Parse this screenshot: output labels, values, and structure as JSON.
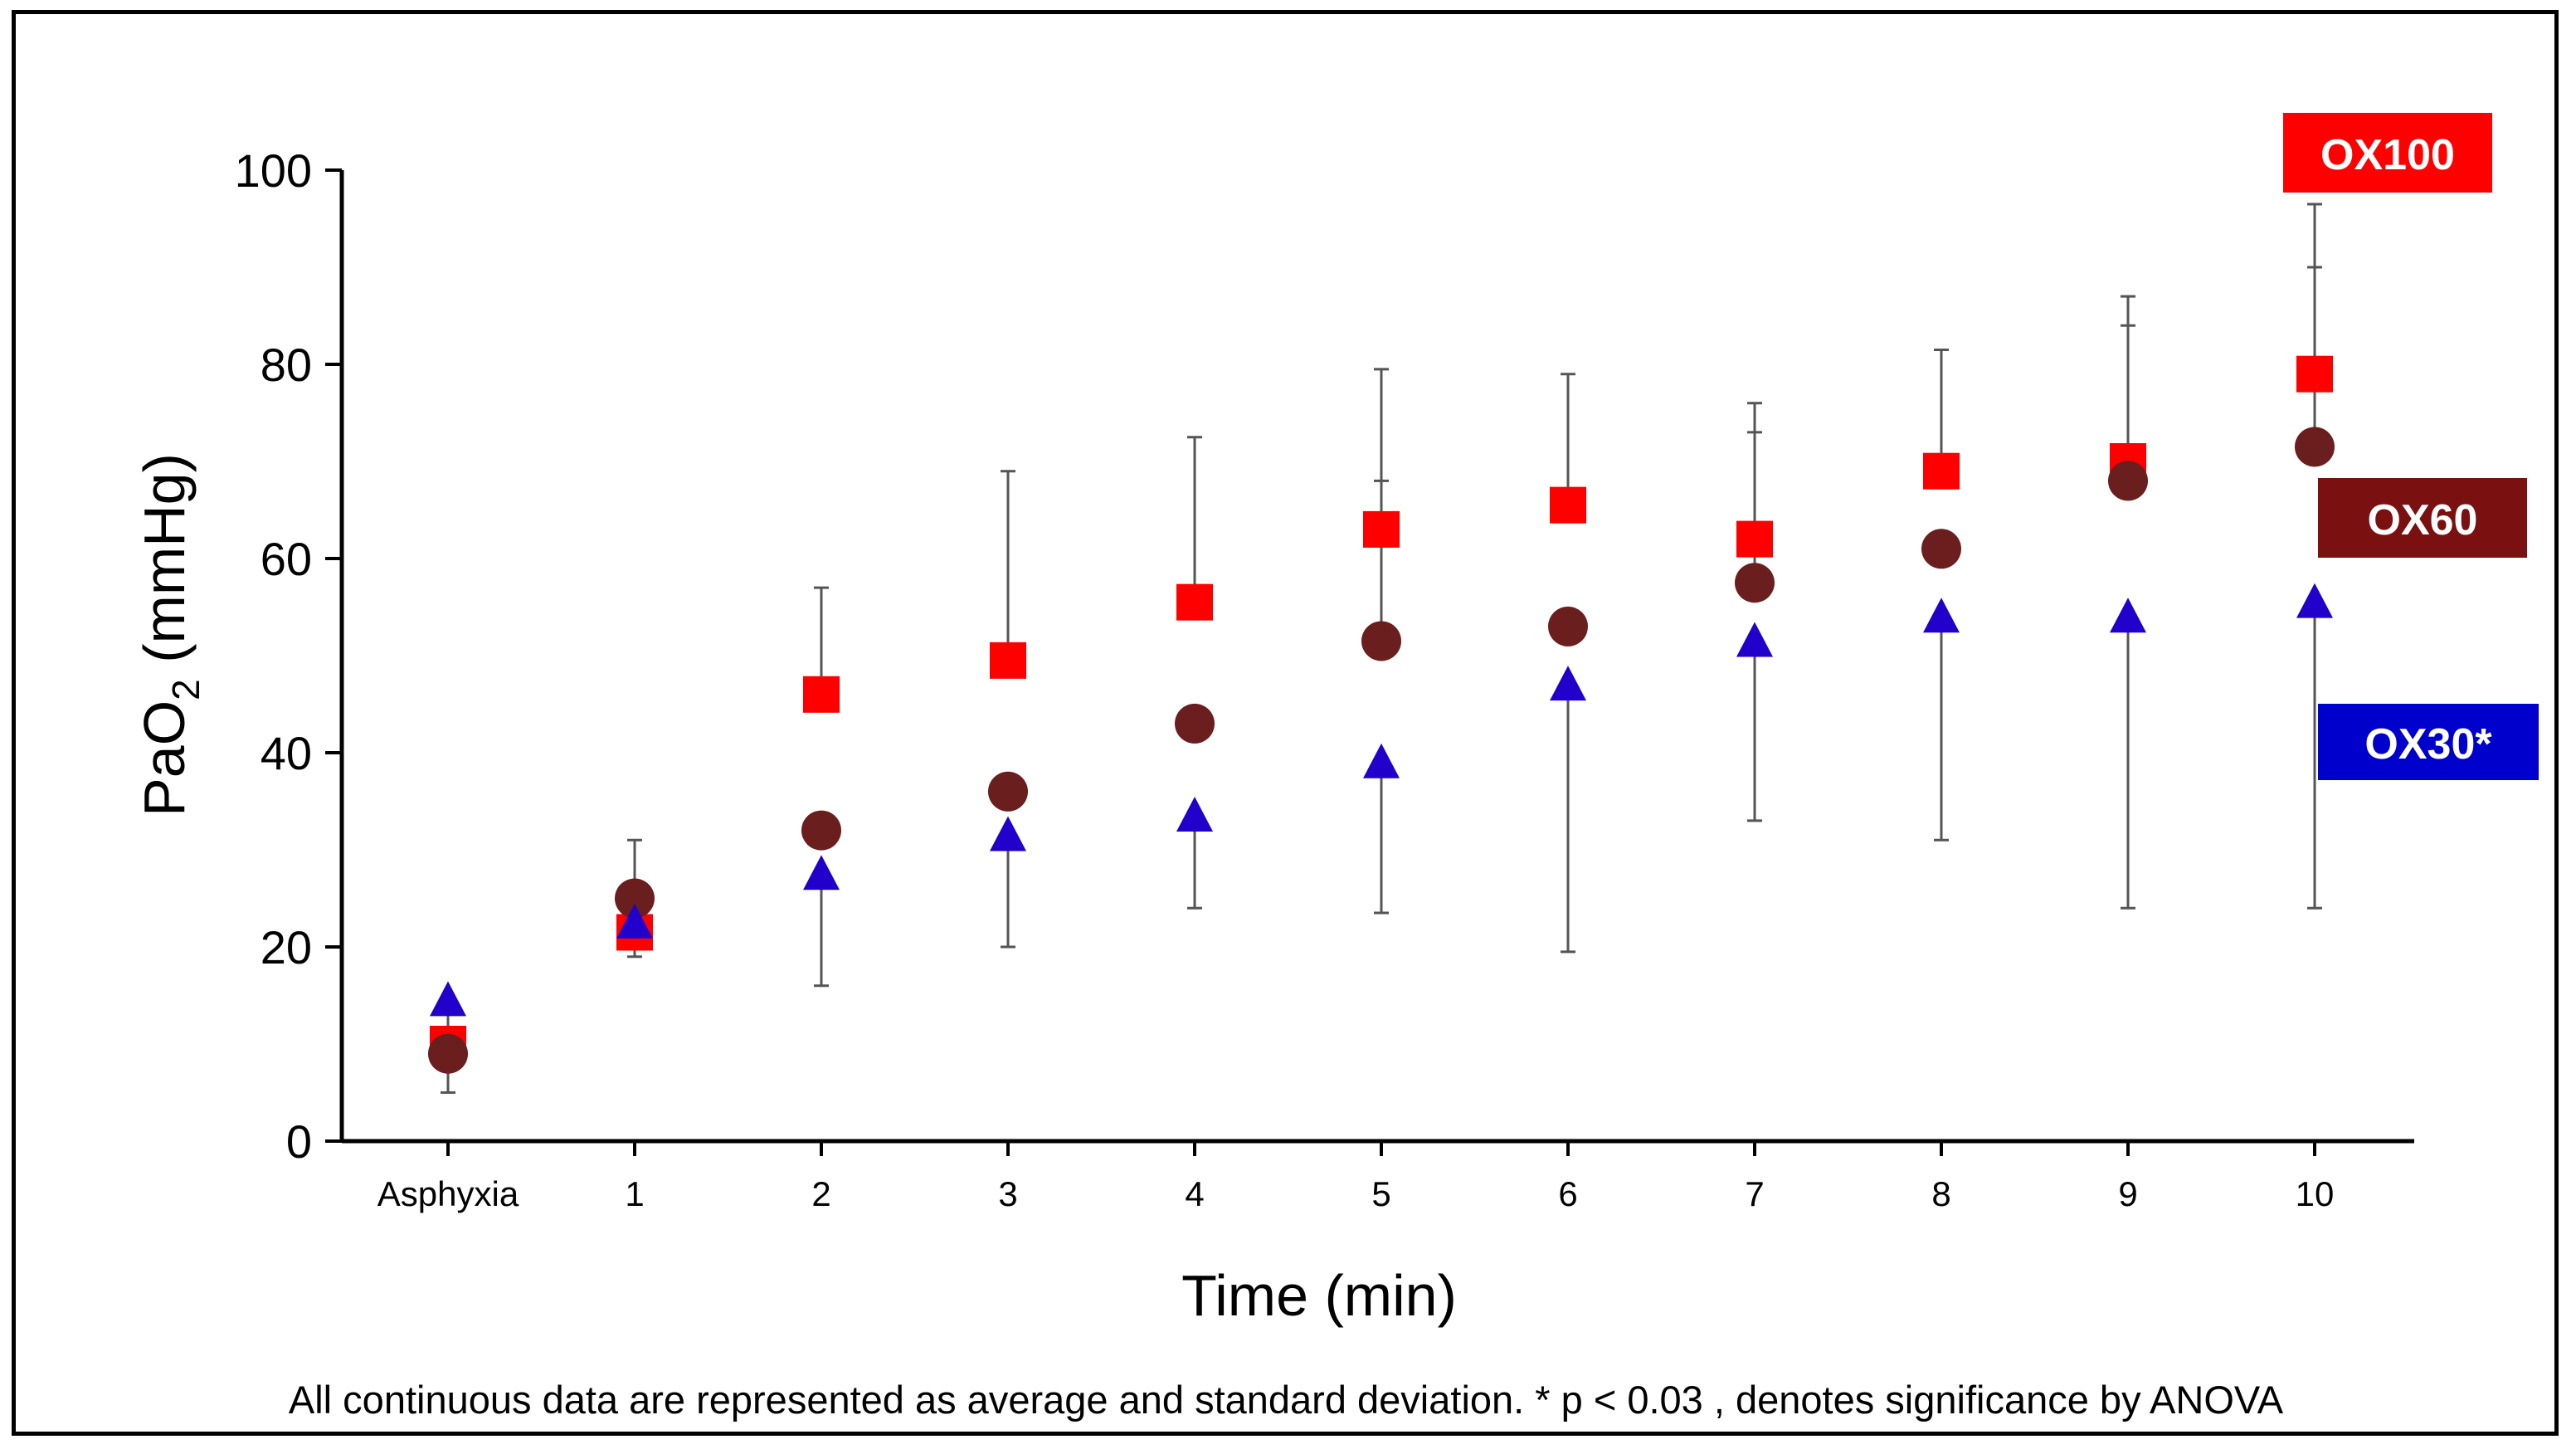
{
  "chart_data": {
    "type": "scatter",
    "title": "",
    "xlabel": "Time (min)",
    "ylabel_main": "PaO",
    "ylabel_sub": "2",
    "ylabel_tail": " (mmHg)",
    "ylim": [
      0,
      100
    ],
    "yticks": [
      "0",
      "20",
      "40",
      "60",
      "80",
      "100"
    ],
    "categories": [
      "Asphyxia",
      "1",
      "2",
      "3",
      "4",
      "5",
      "6",
      "7",
      "8",
      "9",
      "10"
    ],
    "series": [
      {
        "name": "OX100",
        "marker": "square",
        "color": "#ff0000",
        "values": [
          10,
          21.5,
          46,
          49.5,
          55.5,
          63,
          65.5,
          62,
          69,
          70,
          79
        ],
        "error_upper": [
          null,
          null,
          57,
          69,
          72.5,
          79.5,
          79,
          76,
          81.5,
          87,
          96.5
        ]
      },
      {
        "name": "OX60",
        "marker": "circle",
        "color": "#6b1e1e",
        "values": [
          9,
          25,
          32,
          36,
          43,
          51.5,
          53,
          57.5,
          61,
          68,
          71.5
        ],
        "error_upper": [
          null,
          31,
          null,
          null,
          null,
          68,
          null,
          73,
          null,
          84,
          90
        ]
      },
      {
        "name": "OX30*",
        "marker": "triangle",
        "color": "#2200cc",
        "values": [
          14.5,
          22.5,
          27.5,
          31.5,
          33.5,
          39,
          47,
          51.5,
          54,
          54,
          55.5
        ],
        "error_lower": [
          5,
          19,
          16,
          20,
          24,
          23.5,
          19.5,
          33,
          31,
          24,
          24
        ]
      }
    ],
    "legend": [
      {
        "label": "OX100",
        "color": "#ff0000"
      },
      {
        "label": "OX60",
        "color": "#7a1010"
      },
      {
        "label": "OX30*",
        "color": "#0000cc"
      }
    ],
    "caption": "All continuous data are represented as average and standard deviation. * p < 0.03 , denotes significance by ANOVA"
  }
}
